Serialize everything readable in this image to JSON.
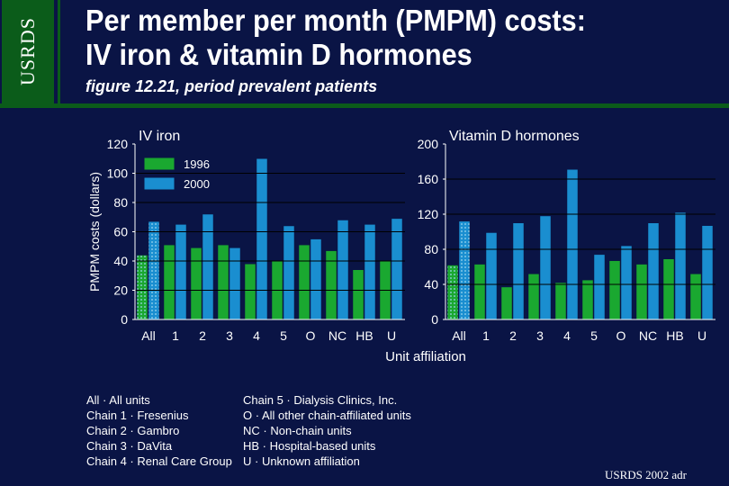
{
  "sidebar": {
    "label": "USRDS"
  },
  "header": {
    "title_line1": "Per member per month (PMPM) costs:",
    "title_line2": "IV iron & vitamin D hormones",
    "subtitle": "figure 12.21, period prevalent patients"
  },
  "chart_data": [
    {
      "type": "bar",
      "title": "IV iron",
      "ylabel": "PMPM costs (dollars)",
      "xlabel": "Unit affiliation",
      "categories": [
        "All",
        "1",
        "2",
        "3",
        "4",
        "5",
        "O",
        "NC",
        "HB",
        "U"
      ],
      "ylim": [
        0,
        120
      ],
      "yticks": [
        0,
        20,
        40,
        60,
        80,
        100,
        120
      ],
      "grid": true,
      "legend": "top-left",
      "series": [
        {
          "name": "1996",
          "color": "#1aa830",
          "values": [
            44,
            51,
            49,
            51,
            38,
            40,
            51,
            47,
            34,
            40
          ]
        },
        {
          "name": "2000",
          "color": "#1a8ed0",
          "values": [
            67,
            65,
            72,
            49,
            110,
            64,
            55,
            68,
            65,
            69
          ]
        }
      ]
    },
    {
      "type": "bar",
      "title": "Vitamin D hormones",
      "categories": [
        "All",
        "1",
        "2",
        "3",
        "4",
        "5",
        "O",
        "NC",
        "HB",
        "U"
      ],
      "ylim": [
        0,
        200
      ],
      "yticks": [
        0,
        40,
        80,
        120,
        160,
        200
      ],
      "grid": true,
      "series": [
        {
          "name": "1996",
          "color": "#1aa830",
          "values": [
            62,
            63,
            37,
            52,
            42,
            45,
            67,
            63,
            69,
            52
          ]
        },
        {
          "name": "2000",
          "color": "#1a8ed0",
          "values": [
            112,
            99,
            110,
            118,
            171,
            74,
            84,
            110,
            122,
            107
          ]
        }
      ]
    }
  ],
  "legend_notes": [
    [
      "All · All units",
      "Chain 5   ·   Dialysis Clinics, Inc."
    ],
    [
      "Chain 1   ·   Fresenius",
      "O · All other chain-affiliated units"
    ],
    [
      "Chain 2   ·   Gambro",
      "NC · Non-chain units"
    ],
    [
      "Chain 3   ·   DaVita",
      "HB · Hospital-based units"
    ],
    [
      "Chain 4 · Renal Care Group",
      "U · Unknown affiliation"
    ]
  ],
  "footer": {
    "credit": "USRDS 2002 adr"
  }
}
